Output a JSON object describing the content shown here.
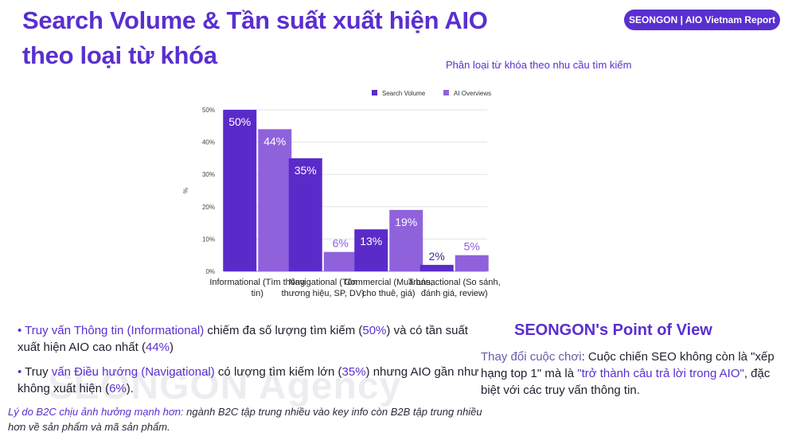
{
  "page_title": "Search Volume & Tần suất xuất hiện AIO theo loại từ khóa",
  "badge": "SEONGON | AIO Vietnam Report",
  "watermark": "SEONGON Agency",
  "colors": {
    "accent": "#5a2fd0",
    "series1": "#5b2bc9",
    "series2": "#8f62dc"
  },
  "chart_data": {
    "type": "bar",
    "title": "Phân loại từ khóa theo nhu cầu tìm kiếm",
    "ylabel": "%",
    "ylim": [
      0,
      50
    ],
    "yticks": [
      "0%",
      "10%",
      "20%",
      "30%",
      "40%",
      "50%"
    ],
    "grid": true,
    "legend_position": "top",
    "categories": [
      [
        "Informational (Tìm thông",
        "tin)"
      ],
      [
        "Navigational (Tên",
        "thương hiệu, SP, DV)"
      ],
      [
        "Commercial (Mua bán,",
        "cho thuê, giá)"
      ],
      [
        "Transactional (So sánh,",
        "đánh giá, review)"
      ]
    ],
    "series": [
      {
        "name": "Search Volume",
        "values": [
          50,
          35,
          13,
          2
        ],
        "labels": [
          "50%",
          "35%",
          "13%",
          "2%"
        ]
      },
      {
        "name": "AI Overviews",
        "values": [
          44,
          6,
          19,
          5
        ],
        "labels": [
          "44%",
          "6%",
          "19%",
          "5%"
        ]
      }
    ]
  },
  "bullets": [
    {
      "p1": "Truy vấn Thông tin (Informational)",
      "p2": " chiếm đa số lượng tìm kiếm (",
      "p3": "50%",
      "p4": ") và có tần suất xuất hiện AIO cao nhất (",
      "p5": "44%",
      "p6": ")"
    },
    {
      "p1": "Truy ",
      "p2": "vấn Điều hướng (Navigational)",
      "p3": " có lượng tìm kiếm lớn (",
      "p4": "35%",
      "p5": ") nhưng AIO gần như không xuất hiện (",
      "p6": "6%",
      "p7": ")."
    }
  ],
  "note": {
    "lead": "Lý do B2C chịu ảnh hưởng mạnh hơn:",
    "text": " ngành B2C tập trung nhiều vào key info còn B2B tập trung nhiều hơn về sản phẩm và mã sản phẩm."
  },
  "pov": {
    "title": "SEONGON's Point of View",
    "lead": "Thay đổi cuộc chơi",
    "t1": ": Cuộc chiến SEO không còn là \"xếp hạng top 1\" mà là ",
    "hl": "\"trở thành câu trả lời trong AIO\"",
    "t2": ", đặc biệt với các truy vấn thông tin."
  }
}
